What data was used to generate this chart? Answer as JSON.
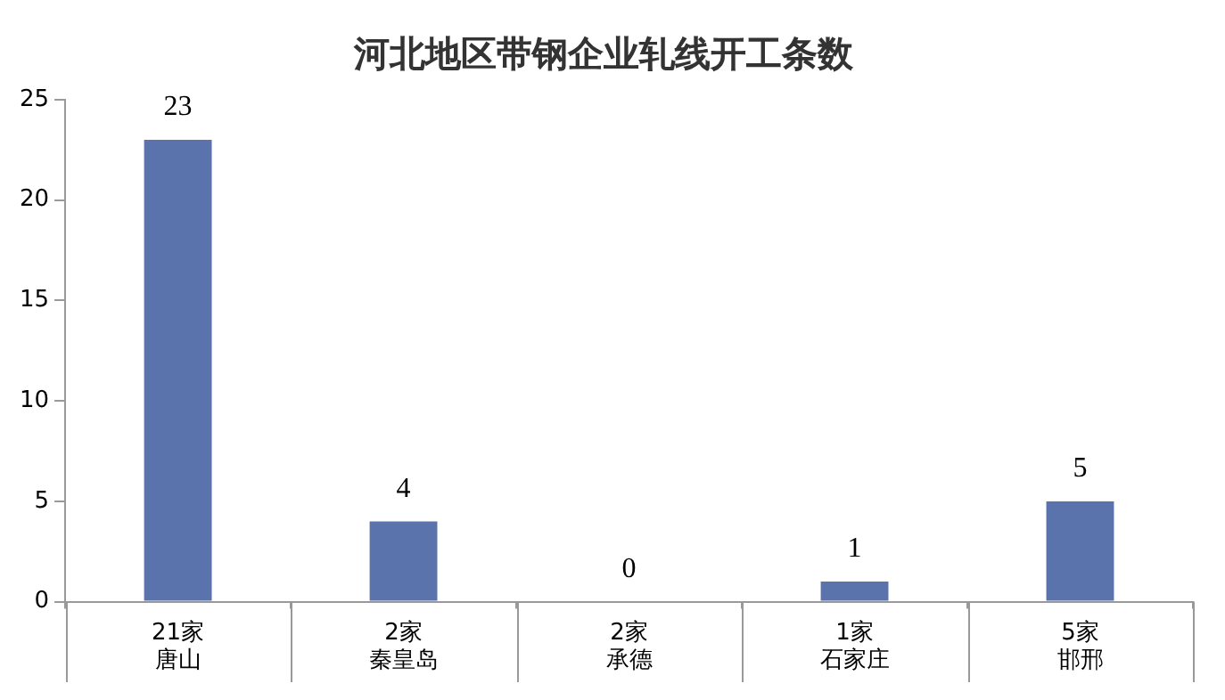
{
  "chart_data": {
    "type": "bar",
    "title": "河北地区带钢企业轧线开工条数",
    "categories": [
      "21家唐山",
      "2家秦皇岛",
      "2家承德",
      "1家石家庄",
      "5家邯邢"
    ],
    "values": [
      23,
      4,
      0,
      1,
      5
    ],
    "color": "#5b73ad",
    "ylim": [
      0,
      25
    ],
    "yticks": [
      0,
      5,
      10,
      15,
      20,
      25
    ],
    "grid": false,
    "data_labels": true,
    "legend": false
  }
}
